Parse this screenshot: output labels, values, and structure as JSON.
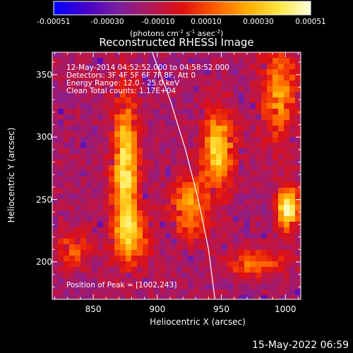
{
  "colorbar": {
    "ticks": [
      "-0.00051",
      "-0.00030",
      "-0.00010",
      "0.00010",
      "0.00030",
      "0.00051"
    ],
    "units": "(photons cm-2 s-1 asec-2)",
    "range": [
      -0.00051,
      0.00051
    ],
    "colors": [
      "#0000ff",
      "#4400cc",
      "#7a1ea0",
      "#b0185a",
      "#e01010",
      "#ff5a00",
      "#ffaa00",
      "#ffe640",
      "#ffffe0"
    ]
  },
  "chart_data": {
    "type": "heatmap",
    "title": "Reconstructed RHESSI Image",
    "xlabel": "Heliocentric X (arcsec)",
    "ylabel": "Heliocentric Y (arcsec)",
    "xlim": [
      818,
      1012
    ],
    "ylim": [
      170,
      368
    ],
    "xticks": [
      "850",
      "900",
      "950",
      "1000"
    ],
    "yticks": [
      "200",
      "250",
      "300",
      "350"
    ],
    "annotations": [
      "12-May-2014 04:52:52.000 to 04:58:52.000",
      "Detectors: 3F 4F 5F 6F 7F 8F, Att 0",
      "Energy Range: 12.0 - 25.0 keV",
      "Clean    Total counts: 1.17E+04"
    ],
    "peak_label": "Position of Peak = [1002,243]",
    "peak": [
      1002,
      243
    ],
    "limb_points": [
      [
        896,
        368
      ],
      [
        910,
        330
      ],
      [
        922,
        290
      ],
      [
        932,
        250
      ],
      [
        940,
        210
      ],
      [
        945,
        170
      ]
    ],
    "sources": [
      {
        "x": 875,
        "y": 275,
        "sx": 7,
        "sy": 38,
        "amp": 0.9
      },
      {
        "x": 880,
        "y": 220,
        "sx": 10,
        "sy": 14,
        "amp": 0.55
      },
      {
        "x": 948,
        "y": 290,
        "sx": 8,
        "sy": 22,
        "amp": 0.85
      },
      {
        "x": 925,
        "y": 245,
        "sx": 10,
        "sy": 18,
        "amp": 0.6
      },
      {
        "x": 995,
        "y": 335,
        "sx": 10,
        "sy": 25,
        "amp": 0.6
      },
      {
        "x": 1002,
        "y": 243,
        "sx": 6,
        "sy": 12,
        "amp": 1.0
      },
      {
        "x": 975,
        "y": 200,
        "sx": 16,
        "sy": 8,
        "amp": 0.5
      },
      {
        "x": 835,
        "y": 210,
        "sx": 10,
        "sy": 10,
        "amp": 0.4
      }
    ]
  },
  "footer": "15-May-2022 06:59"
}
